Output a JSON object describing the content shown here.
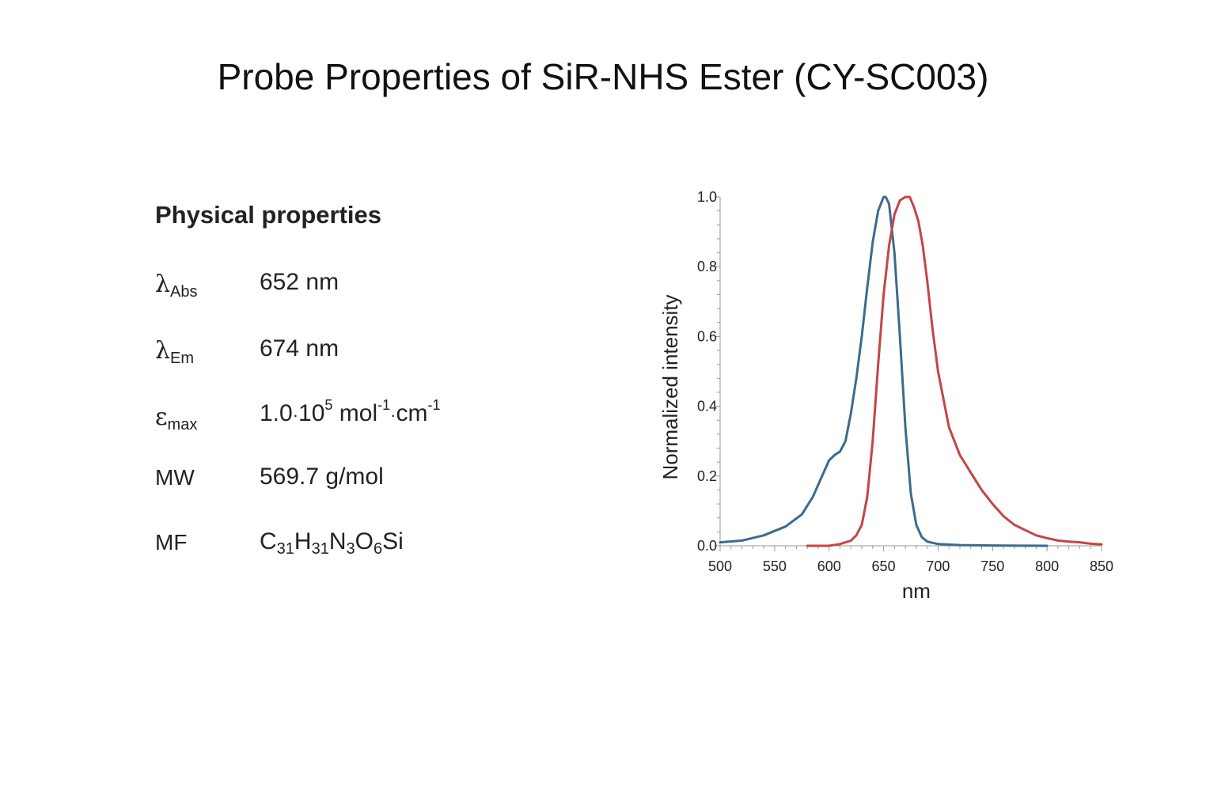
{
  "page": {
    "title": "Probe Properties of SiR-NHS Ester (CY-SC003)"
  },
  "properties": {
    "section_title": "Physical properties",
    "abs": {
      "symbol": "λ",
      "sub": "Abs",
      "value": "652 nm"
    },
    "em": {
      "symbol": "λ",
      "sub": "Em",
      "value": "674 nm"
    },
    "emax": {
      "symbol": "ε",
      "sub": "max",
      "value_mantissa": "1.0",
      "value_dot": "·",
      "value_base": "10",
      "value_exp": "5",
      "value_unit1": " mol",
      "value_unit1_exp": "-1",
      "value_unit2": "cm",
      "value_unit2_exp": "-1"
    },
    "mw": {
      "label": "MW",
      "value": "569.7 g/mol"
    },
    "mf": {
      "label": "MF",
      "parts": [
        {
          "t": "C",
          "s": "31"
        },
        {
          "t": "H",
          "s": "31"
        },
        {
          "t": "N",
          "s": "3"
        },
        {
          "t": "O",
          "s": "6"
        },
        {
          "t": "Si",
          "s": ""
        }
      ]
    }
  },
  "chart_data": {
    "type": "line",
    "xlabel": "nm",
    "ylabel": "Normalized intensity",
    "xlim": [
      500,
      850
    ],
    "ylim": [
      0,
      1.0
    ],
    "xticks": [
      500,
      550,
      600,
      650,
      700,
      750,
      800,
      850
    ],
    "yticks": [
      0.0,
      0.2,
      0.4,
      0.6,
      0.8,
      1.0
    ],
    "ytick_labels": [
      "0.0",
      "0.2",
      "0.4",
      "0.6",
      "0.8",
      "1.0"
    ],
    "grid": false,
    "series": [
      {
        "color": "#3d6b8e",
        "x": [
          500,
          520,
          540,
          560,
          575,
          585,
          595,
          600,
          605,
          610,
          615,
          620,
          625,
          630,
          635,
          640,
          645,
          650,
          652,
          655,
          660,
          665,
          670,
          675,
          680,
          685,
          690,
          700,
          720,
          750,
          800
        ],
        "y": [
          0.01,
          0.015,
          0.03,
          0.055,
          0.09,
          0.14,
          0.21,
          0.245,
          0.26,
          0.27,
          0.3,
          0.38,
          0.48,
          0.6,
          0.74,
          0.87,
          0.96,
          1.0,
          1.0,
          0.98,
          0.84,
          0.6,
          0.34,
          0.15,
          0.06,
          0.025,
          0.012,
          0.005,
          0.002,
          0.001,
          0.0
        ]
      },
      {
        "color": "#c44545",
        "x": [
          580,
          600,
          610,
          620,
          625,
          630,
          635,
          640,
          645,
          650,
          655,
          660,
          665,
          670,
          674,
          678,
          682,
          686,
          690,
          695,
          700,
          705,
          710,
          720,
          730,
          740,
          750,
          760,
          770,
          780,
          790,
          800,
          810,
          820,
          830,
          840,
          850
        ],
        "y": [
          0.0,
          0.0,
          0.005,
          0.015,
          0.03,
          0.06,
          0.14,
          0.3,
          0.52,
          0.72,
          0.86,
          0.95,
          0.99,
          1.0,
          1.0,
          0.97,
          0.93,
          0.86,
          0.76,
          0.62,
          0.5,
          0.42,
          0.34,
          0.26,
          0.21,
          0.16,
          0.12,
          0.085,
          0.06,
          0.045,
          0.03,
          0.022,
          0.015,
          0.012,
          0.01,
          0.006,
          0.004
        ]
      }
    ]
  }
}
